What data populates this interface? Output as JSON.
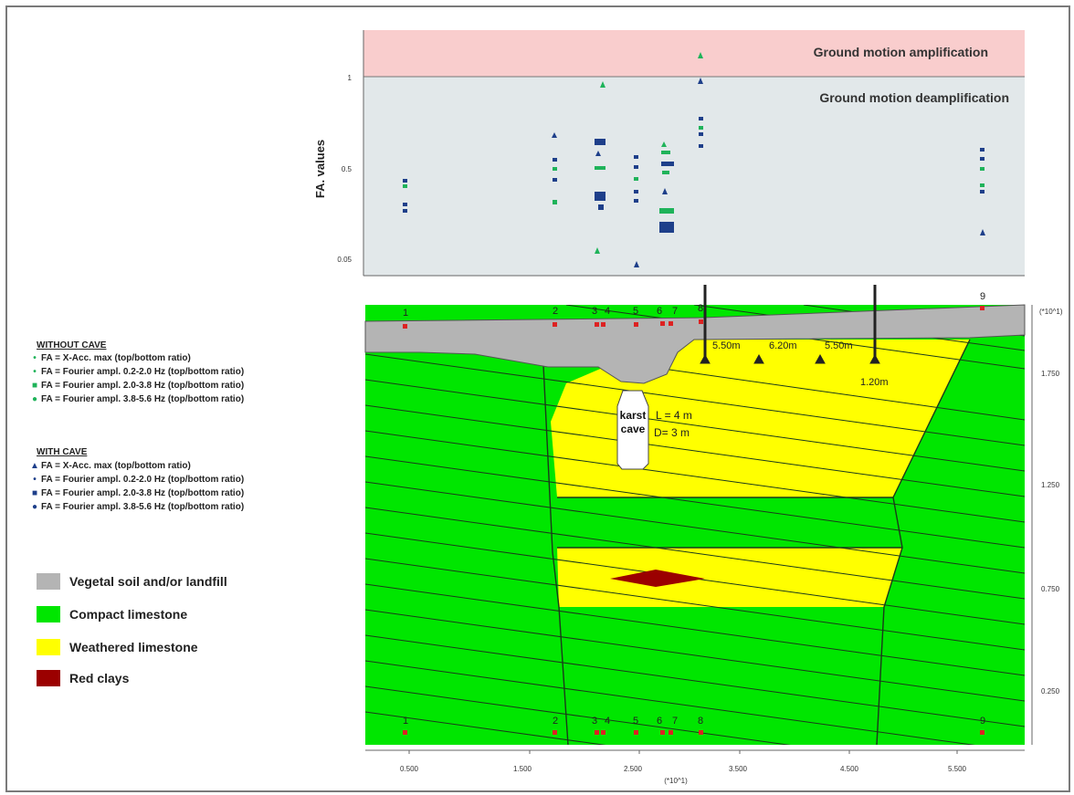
{
  "plot": {
    "ylabel": "FA. values",
    "yticks": [
      "1",
      "0.5",
      "0.05"
    ],
    "amplification_label": "Ground motion amplification",
    "deamplification_label": "Ground motion deamplification"
  },
  "section": {
    "station_labels": [
      "1",
      "2",
      "3",
      "4",
      "5",
      "6",
      "7",
      "8",
      "9"
    ],
    "x_ticks": [
      "0.500",
      "1.500",
      "2.500",
      "3.500",
      "4.500",
      "5.500"
    ],
    "y_ticks": [
      "1.750",
      "1.250",
      "0.750",
      "0.250"
    ],
    "axis_multiplier": "(*10^1)",
    "spacings": [
      "5.50m",
      "6.20m",
      "5.50m"
    ],
    "depth": "1.20m",
    "cave_label_1": "karst",
    "cave_label_2": "cave",
    "cave_L": "L = 4 m",
    "cave_D": "D= 3 m"
  },
  "legend": {
    "without_heading": "WITHOUT CAVE",
    "without_items": [
      {
        "marker": "•",
        "text": "FA = X-Acc. max (top/bottom ratio)"
      },
      {
        "marker": "•",
        "text": "FA = Fourier ampl. 0.2-2.0 Hz (top/bottom ratio)"
      },
      {
        "marker": "■",
        "text": "FA = Fourier ampl. 2.0-3.8 Hz (top/bottom ratio)"
      },
      {
        "marker": "●",
        "text": "FA = Fourier ampl. 3.8-5.6 Hz (top/bottom ratio)"
      }
    ],
    "with_heading": "WITH CAVE",
    "with_items": [
      {
        "marker": "▲",
        "text": "FA = X-Acc. max (top/bottom ratio)"
      },
      {
        "marker": "•",
        "text": "FA = Fourier ampl. 0.2-2.0 Hz (top/bottom ratio)"
      },
      {
        "marker": "■",
        "text": "FA = Fourier ampl. 2.0-3.8 Hz (top/bottom ratio)"
      },
      {
        "marker": "●",
        "text": "FA = Fourier ampl. 3.8-5.6 Hz (top/bottom ratio)"
      }
    ],
    "materials": [
      {
        "name": "Vegetal soil and/or landfill",
        "color": "#b4b4b4"
      },
      {
        "name": "Compact limestone",
        "color": "#00e600"
      },
      {
        "name": "Weathered limestone",
        "color": "#ffff00"
      },
      {
        "name": "Red clays",
        "color": "#9b0000"
      }
    ]
  },
  "colors": {
    "without_cave": "#1fb35a",
    "with_cave": "#1e3f8a",
    "station": "#dd2222",
    "amp_band": "#f9cdcd",
    "deamp_band": "#e2e8ea"
  }
}
